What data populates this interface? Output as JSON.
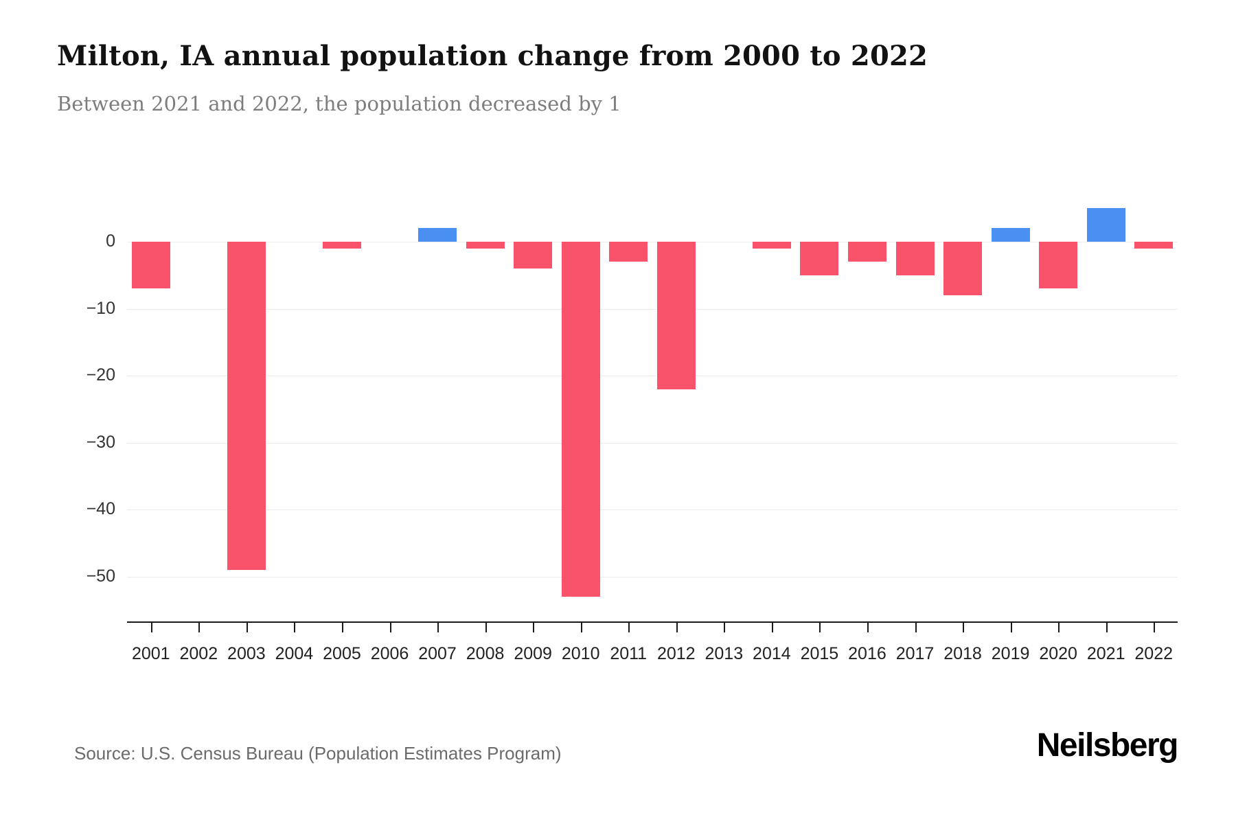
{
  "header": {
    "title": "Milton, IA annual population change from 2000 to 2022",
    "subtitle": "Between 2021 and 2022, the population decreased by 1"
  },
  "footer": {
    "source": "Source: U.S. Census Bureau (Population Estimates Program)",
    "brand": "Neilsberg"
  },
  "chart_data": {
    "type": "bar",
    "title": "Milton, IA annual population change from 2000 to 2022",
    "subtitle": "Between 2021 and 2022, the population decreased by 1",
    "categories": [
      "2001",
      "2002",
      "2003",
      "2004",
      "2005",
      "2006",
      "2007",
      "2008",
      "2009",
      "2010",
      "2011",
      "2012",
      "2013",
      "2014",
      "2015",
      "2016",
      "2017",
      "2018",
      "2019",
      "2020",
      "2021",
      "2022"
    ],
    "values": [
      -7,
      0,
      -49,
      0,
      -1,
      0,
      2,
      -1,
      -4,
      -53,
      -3,
      -22,
      0,
      -1,
      -5,
      -3,
      -5,
      -8,
      2,
      -7,
      5,
      -1
    ],
    "yticks": [
      0,
      -10,
      -20,
      -30,
      -40,
      -50
    ],
    "ytick_labels": [
      "0",
      "−10",
      "−20",
      "−30",
      "−40",
      "−50"
    ],
    "ylim": [
      -56,
      7
    ],
    "xlabel": "",
    "ylabel": "",
    "grid": true,
    "legend": false,
    "colors": {
      "negative": "#f9526b",
      "positive": "#4a90f2"
    }
  }
}
